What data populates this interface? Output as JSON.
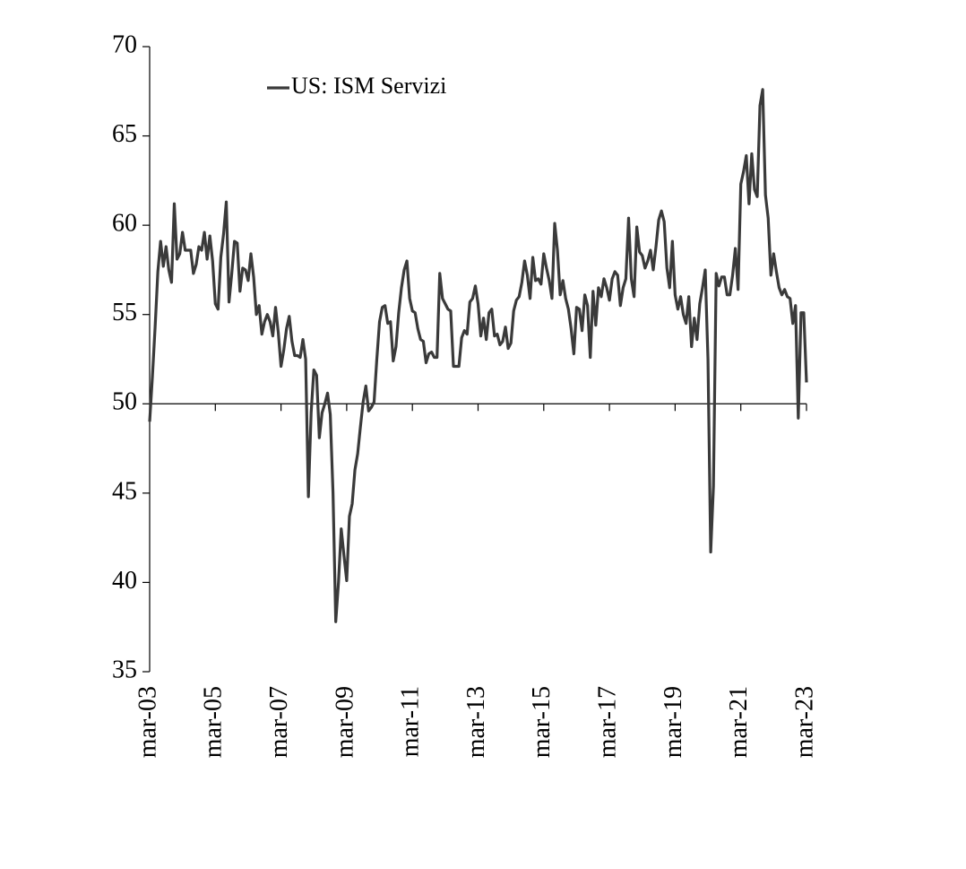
{
  "chart_data": {
    "type": "line",
    "categories": [
      "mar-03",
      null,
      null,
      null,
      null,
      null,
      null,
      null,
      null,
      null,
      null,
      null,
      null,
      null,
      null,
      null,
      null,
      null,
      null,
      null,
      null,
      null,
      null,
      null,
      "mar-05",
      null,
      null,
      null,
      null,
      null,
      null,
      null,
      null,
      null,
      null,
      null,
      null,
      null,
      null,
      null,
      null,
      null,
      null,
      null,
      null,
      null,
      null,
      null,
      "mar-07",
      null,
      null,
      null,
      null,
      null,
      null,
      null,
      null,
      null,
      null,
      null,
      null,
      null,
      null,
      null,
      null,
      null,
      null,
      null,
      null,
      null,
      null,
      null,
      "mar-09",
      null,
      null,
      null,
      null,
      null,
      null,
      null,
      null,
      null,
      null,
      null,
      null,
      null,
      null,
      null,
      null,
      null,
      null,
      null,
      null,
      null,
      null,
      null,
      "mar-11",
      null,
      null,
      null,
      null,
      null,
      null,
      null,
      null,
      null,
      null,
      null,
      null,
      null,
      null,
      null,
      null,
      null,
      null,
      null,
      null,
      null,
      null,
      null,
      "mar-13",
      null,
      null,
      null,
      null,
      null,
      null,
      null,
      null,
      null,
      null,
      null,
      null,
      null,
      null,
      null,
      null,
      null,
      null,
      null,
      null,
      null,
      null,
      null,
      "mar-15",
      null,
      null,
      null,
      null,
      null,
      null,
      null,
      null,
      null,
      null,
      null,
      null,
      null,
      null,
      null,
      null,
      null,
      null,
      null,
      null,
      null,
      null,
      null,
      "mar-17",
      null,
      null,
      null,
      null,
      null,
      null,
      null,
      null,
      null,
      null,
      null,
      null,
      null,
      null,
      null,
      null,
      null,
      null,
      null,
      null,
      null,
      null,
      null,
      "mar-19",
      null,
      null,
      null,
      null,
      null,
      null,
      null,
      null,
      null,
      null,
      null,
      null,
      null,
      null,
      null,
      null,
      null,
      null,
      null,
      null,
      null,
      null,
      null,
      "mar-21",
      null,
      null,
      null,
      null,
      null,
      null,
      null,
      null,
      null,
      null,
      null,
      null,
      null,
      null,
      null,
      null,
      null,
      null,
      null,
      null,
      null,
      null,
      null,
      "mar-23"
    ],
    "series": [
      {
        "name": "US: ISM Servizi",
        "color": "#3a3a3a",
        "values": [
          49.0,
          51.5,
          54.3,
          57.4,
          59.1,
          57.7,
          58.8,
          57.5,
          56.8,
          61.2,
          58.1,
          58.4,
          59.6,
          58.6,
          58.6,
          58.6,
          57.3,
          57.8,
          58.8,
          58.6,
          59.6,
          58.1,
          59.4,
          58.0,
          55.6,
          55.3,
          58.2,
          59.5,
          61.3,
          55.7,
          57.3,
          59.1,
          59.0,
          56.3,
          57.6,
          57.5,
          56.9,
          58.4,
          57.1,
          55.0,
          55.5,
          53.9,
          54.6,
          55.0,
          54.6,
          53.8,
          55.4,
          54.0,
          52.1,
          53.0,
          54.2,
          54.9,
          53.5,
          52.7,
          52.7,
          52.6,
          53.6,
          52.5,
          44.8,
          49.5,
          51.9,
          51.6,
          48.1,
          49.5,
          50.0,
          50.6,
          49.4,
          45.0,
          37.8,
          40.0,
          43.0,
          41.5,
          40.1,
          43.7,
          44.4,
          46.3,
          47.2,
          48.7,
          50.1,
          51.0,
          49.6,
          49.8,
          50.1,
          52.5,
          54.6,
          55.4,
          55.5,
          54.5,
          54.6,
          52.4,
          53.2,
          55.1,
          56.5,
          57.5,
          58.0,
          55.9,
          55.2,
          55.1,
          54.2,
          53.6,
          53.5,
          52.3,
          52.8,
          52.9,
          52.6,
          52.6,
          57.3,
          55.9,
          55.6,
          55.3,
          55.2,
          52.1,
          52.1,
          52.1,
          53.7,
          54.1,
          53.9,
          55.7,
          55.9,
          56.6,
          55.6,
          53.8,
          54.8,
          53.6,
          55.1,
          55.3,
          53.8,
          53.9,
          53.3,
          53.5,
          54.3,
          53.1,
          53.4,
          55.2,
          55.8,
          56.0,
          56.8,
          58.0,
          57.2,
          55.9,
          58.2,
          56.9,
          57.0,
          56.7,
          58.4,
          57.6,
          56.9,
          55.9,
          60.1,
          58.6,
          56.1,
          56.9,
          55.9,
          55.3,
          54.2,
          52.8,
          55.4,
          55.3,
          54.1,
          56.1,
          55.5,
          52.6,
          56.3,
          54.4,
          56.5,
          56.0,
          57.0,
          56.5,
          55.8,
          57.0,
          57.4,
          57.2,
          55.5,
          56.5,
          57.0,
          60.4,
          57.0,
          56.0,
          59.9,
          58.5,
          58.3,
          57.6,
          58.0,
          58.6,
          57.5,
          58.8,
          60.3,
          60.8,
          60.2,
          57.6,
          56.5,
          59.1,
          56.1,
          55.3,
          56.0,
          55.0,
          54.5,
          56.0,
          53.2,
          54.8,
          53.6,
          55.6,
          56.5,
          57.5,
          52.5,
          41.7,
          45.4,
          57.3,
          56.6,
          57.1,
          57.1,
          56.1,
          56.1,
          57.2,
          58.7,
          56.4,
          62.3,
          63.0,
          63.9,
          61.2,
          64.0,
          62.0,
          61.6,
          66.7,
          67.6,
          61.7,
          60.4,
          57.2,
          58.4,
          57.4,
          56.5,
          56.1,
          56.4,
          56.0,
          55.9,
          54.5,
          55.5,
          49.2,
          55.1,
          55.1,
          51.2
        ]
      }
    ],
    "ylim": [
      35,
      70
    ],
    "yticks": [
      35,
      40,
      45,
      50,
      55,
      60,
      65,
      70
    ],
    "xaxis_crossing": 50,
    "grid": false
  }
}
